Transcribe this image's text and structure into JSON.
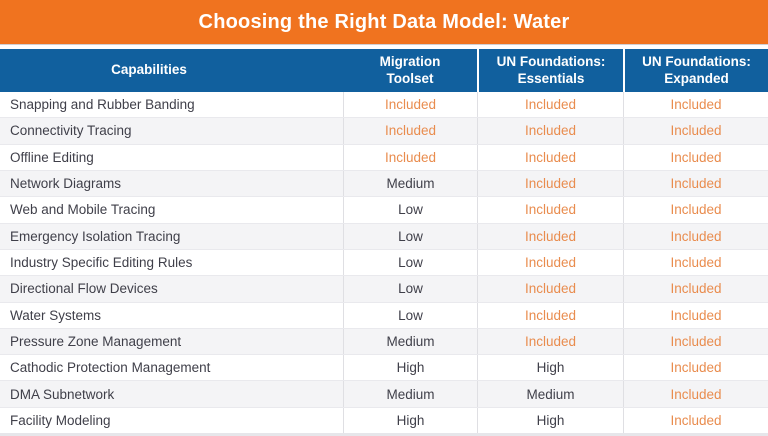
{
  "title": "Choosing the Right Data Model: Water",
  "colors": {
    "title_bar_orange": "#F0731F",
    "header_blue": "#11609E",
    "included_orange": "#E98C4E",
    "body_text": "#3F3F49",
    "alt_row_gray": "#F4F4F6"
  },
  "table": {
    "columns": [
      "Capabilities",
      "Migration\nToolset",
      "UN Foundations:\nEssentials",
      "UN Foundations:\nExpanded"
    ],
    "rows": [
      {
        "capability": "Snapping and Rubber Banding",
        "values": [
          "Included",
          "Included",
          "Included"
        ]
      },
      {
        "capability": "Connectivity Tracing",
        "values": [
          "Included",
          "Included",
          "Included"
        ]
      },
      {
        "capability": "Offline Editing",
        "values": [
          "Included",
          "Included",
          "Included"
        ]
      },
      {
        "capability": "Network Diagrams",
        "values": [
          "Medium",
          "Included",
          "Included"
        ]
      },
      {
        "capability": "Web and Mobile Tracing",
        "values": [
          "Low",
          "Included",
          "Included"
        ]
      },
      {
        "capability": "Emergency Isolation Tracing",
        "values": [
          "Low",
          "Included",
          "Included"
        ]
      },
      {
        "capability": "Industry Specific Editing Rules",
        "values": [
          "Low",
          "Included",
          "Included"
        ]
      },
      {
        "capability": "Directional Flow Devices",
        "values": [
          "Low",
          "Included",
          "Included"
        ]
      },
      {
        "capability": "Water Systems",
        "values": [
          "Low",
          "Included",
          "Included"
        ]
      },
      {
        "capability": "Pressure Zone Management",
        "values": [
          "Medium",
          "Included",
          "Included"
        ]
      },
      {
        "capability": "Cathodic Protection Management",
        "values": [
          "High",
          "High",
          "Included"
        ]
      },
      {
        "capability": "DMA Subnetwork",
        "values": [
          "Medium",
          "Medium",
          "Included"
        ]
      },
      {
        "capability": "Facility Modeling",
        "values": [
          "High",
          "High",
          "Included"
        ]
      }
    ]
  }
}
